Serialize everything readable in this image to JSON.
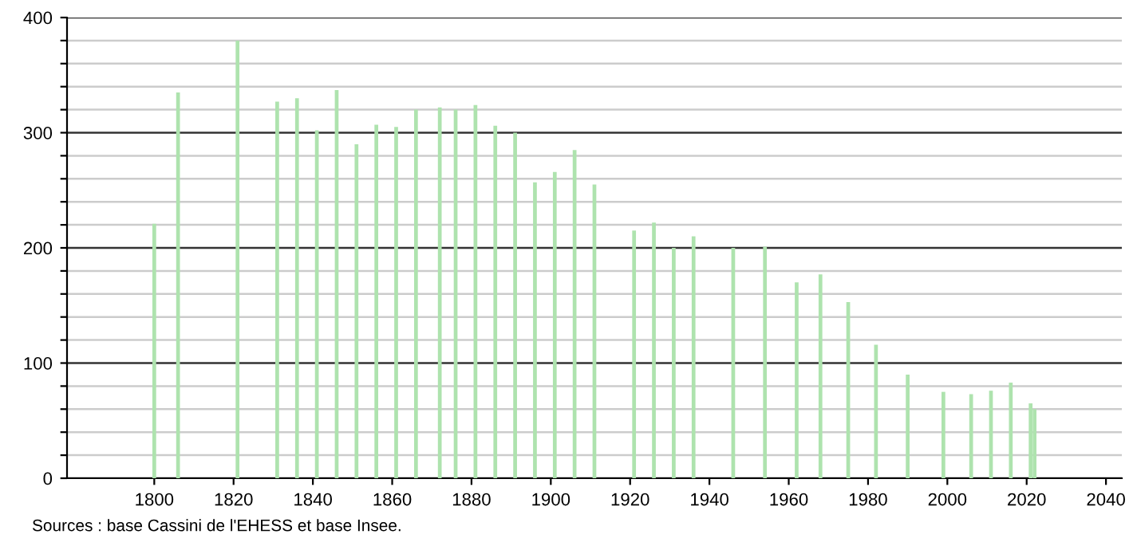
{
  "chart_data": {
    "type": "bar",
    "x": [
      1800,
      1806,
      1821,
      1831,
      1836,
      1841,
      1846,
      1851,
      1856,
      1861,
      1866,
      1872,
      1876,
      1881,
      1886,
      1891,
      1896,
      1901,
      1906,
      1911,
      1921,
      1926,
      1931,
      1936,
      1946,
      1954,
      1962,
      1968,
      1975,
      1982,
      1990,
      1999,
      2006,
      2011,
      2016,
      2021,
      2022
    ],
    "values": [
      221,
      335,
      380,
      327,
      330,
      302,
      337,
      290,
      307,
      305,
      320,
      322,
      320,
      324,
      306,
      300,
      257,
      266,
      285,
      255,
      215,
      222,
      200,
      210,
      200,
      201,
      170,
      177,
      153,
      116,
      90,
      75,
      73,
      76,
      83,
      65,
      60
    ],
    "color": "#aee3ae",
    "xlim": [
      1778,
      2044
    ],
    "xticks": [
      1800,
      1820,
      1840,
      1860,
      1880,
      1900,
      1920,
      1940,
      1960,
      1980,
      2000,
      2020,
      2040
    ],
    "ylim": [
      0,
      400
    ],
    "yticks": [
      0,
      {
        "value": 20,
        "label": null
      },
      {
        "value": 40,
        "label": null
      },
      {
        "value": 60,
        "label": null
      },
      {
        "value": 80,
        "label": null
      },
      100,
      {
        "value": 120,
        "label": null
      },
      {
        "value": 140,
        "label": null
      },
      {
        "value": 160,
        "label": null
      },
      {
        "value": 180,
        "label": null
      },
      200,
      {
        "value": 220,
        "label": null
      },
      {
        "value": 240,
        "label": null
      },
      {
        "value": 260,
        "label": null
      },
      {
        "value": 280,
        "label": null
      },
      300,
      {
        "value": 320,
        "label": null
      },
      {
        "value": 340,
        "label": null
      },
      {
        "value": 360,
        "label": null
      },
      {
        "value": 380,
        "label": null
      },
      400
    ],
    "grid": "y",
    "annotations": [
      "Sources : base Cassini de l'EHESS et base Insee."
    ]
  }
}
